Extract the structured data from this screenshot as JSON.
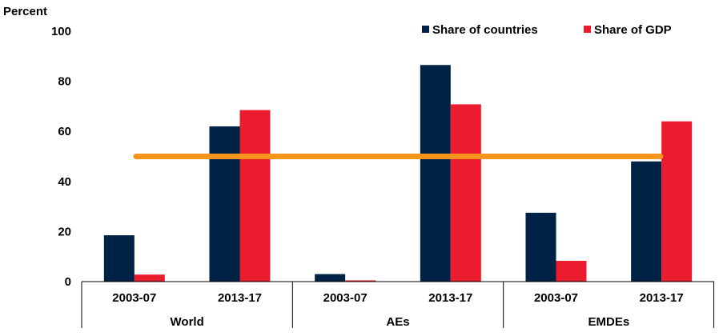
{
  "chart_data": {
    "type": "bar",
    "ylabel": "Percent",
    "ylim": [
      0,
      100
    ],
    "yticks": [
      0,
      20,
      40,
      60,
      80,
      100
    ],
    "grid": false,
    "legend_position": "top-right",
    "groups": [
      {
        "name": "World",
        "categories": [
          "2003-07",
          "2013-17"
        ]
      },
      {
        "name": "AEs",
        "categories": [
          "2003-07",
          "2013-17"
        ]
      },
      {
        "name": "EMDEs",
        "categories": [
          "2003-07",
          "2013-17"
        ]
      }
    ],
    "series": [
      {
        "name": "Share of countries",
        "color": "#002244",
        "values": [
          18.5,
          62,
          3,
          86.5,
          27.5,
          48
        ]
      },
      {
        "name": "Share of GDP",
        "color": "#EB1C2D",
        "values": [
          2.8,
          68.5,
          0.5,
          70.8,
          8.3,
          64
        ]
      }
    ],
    "reference_line": {
      "value": 50,
      "color": "#F7941D"
    }
  }
}
